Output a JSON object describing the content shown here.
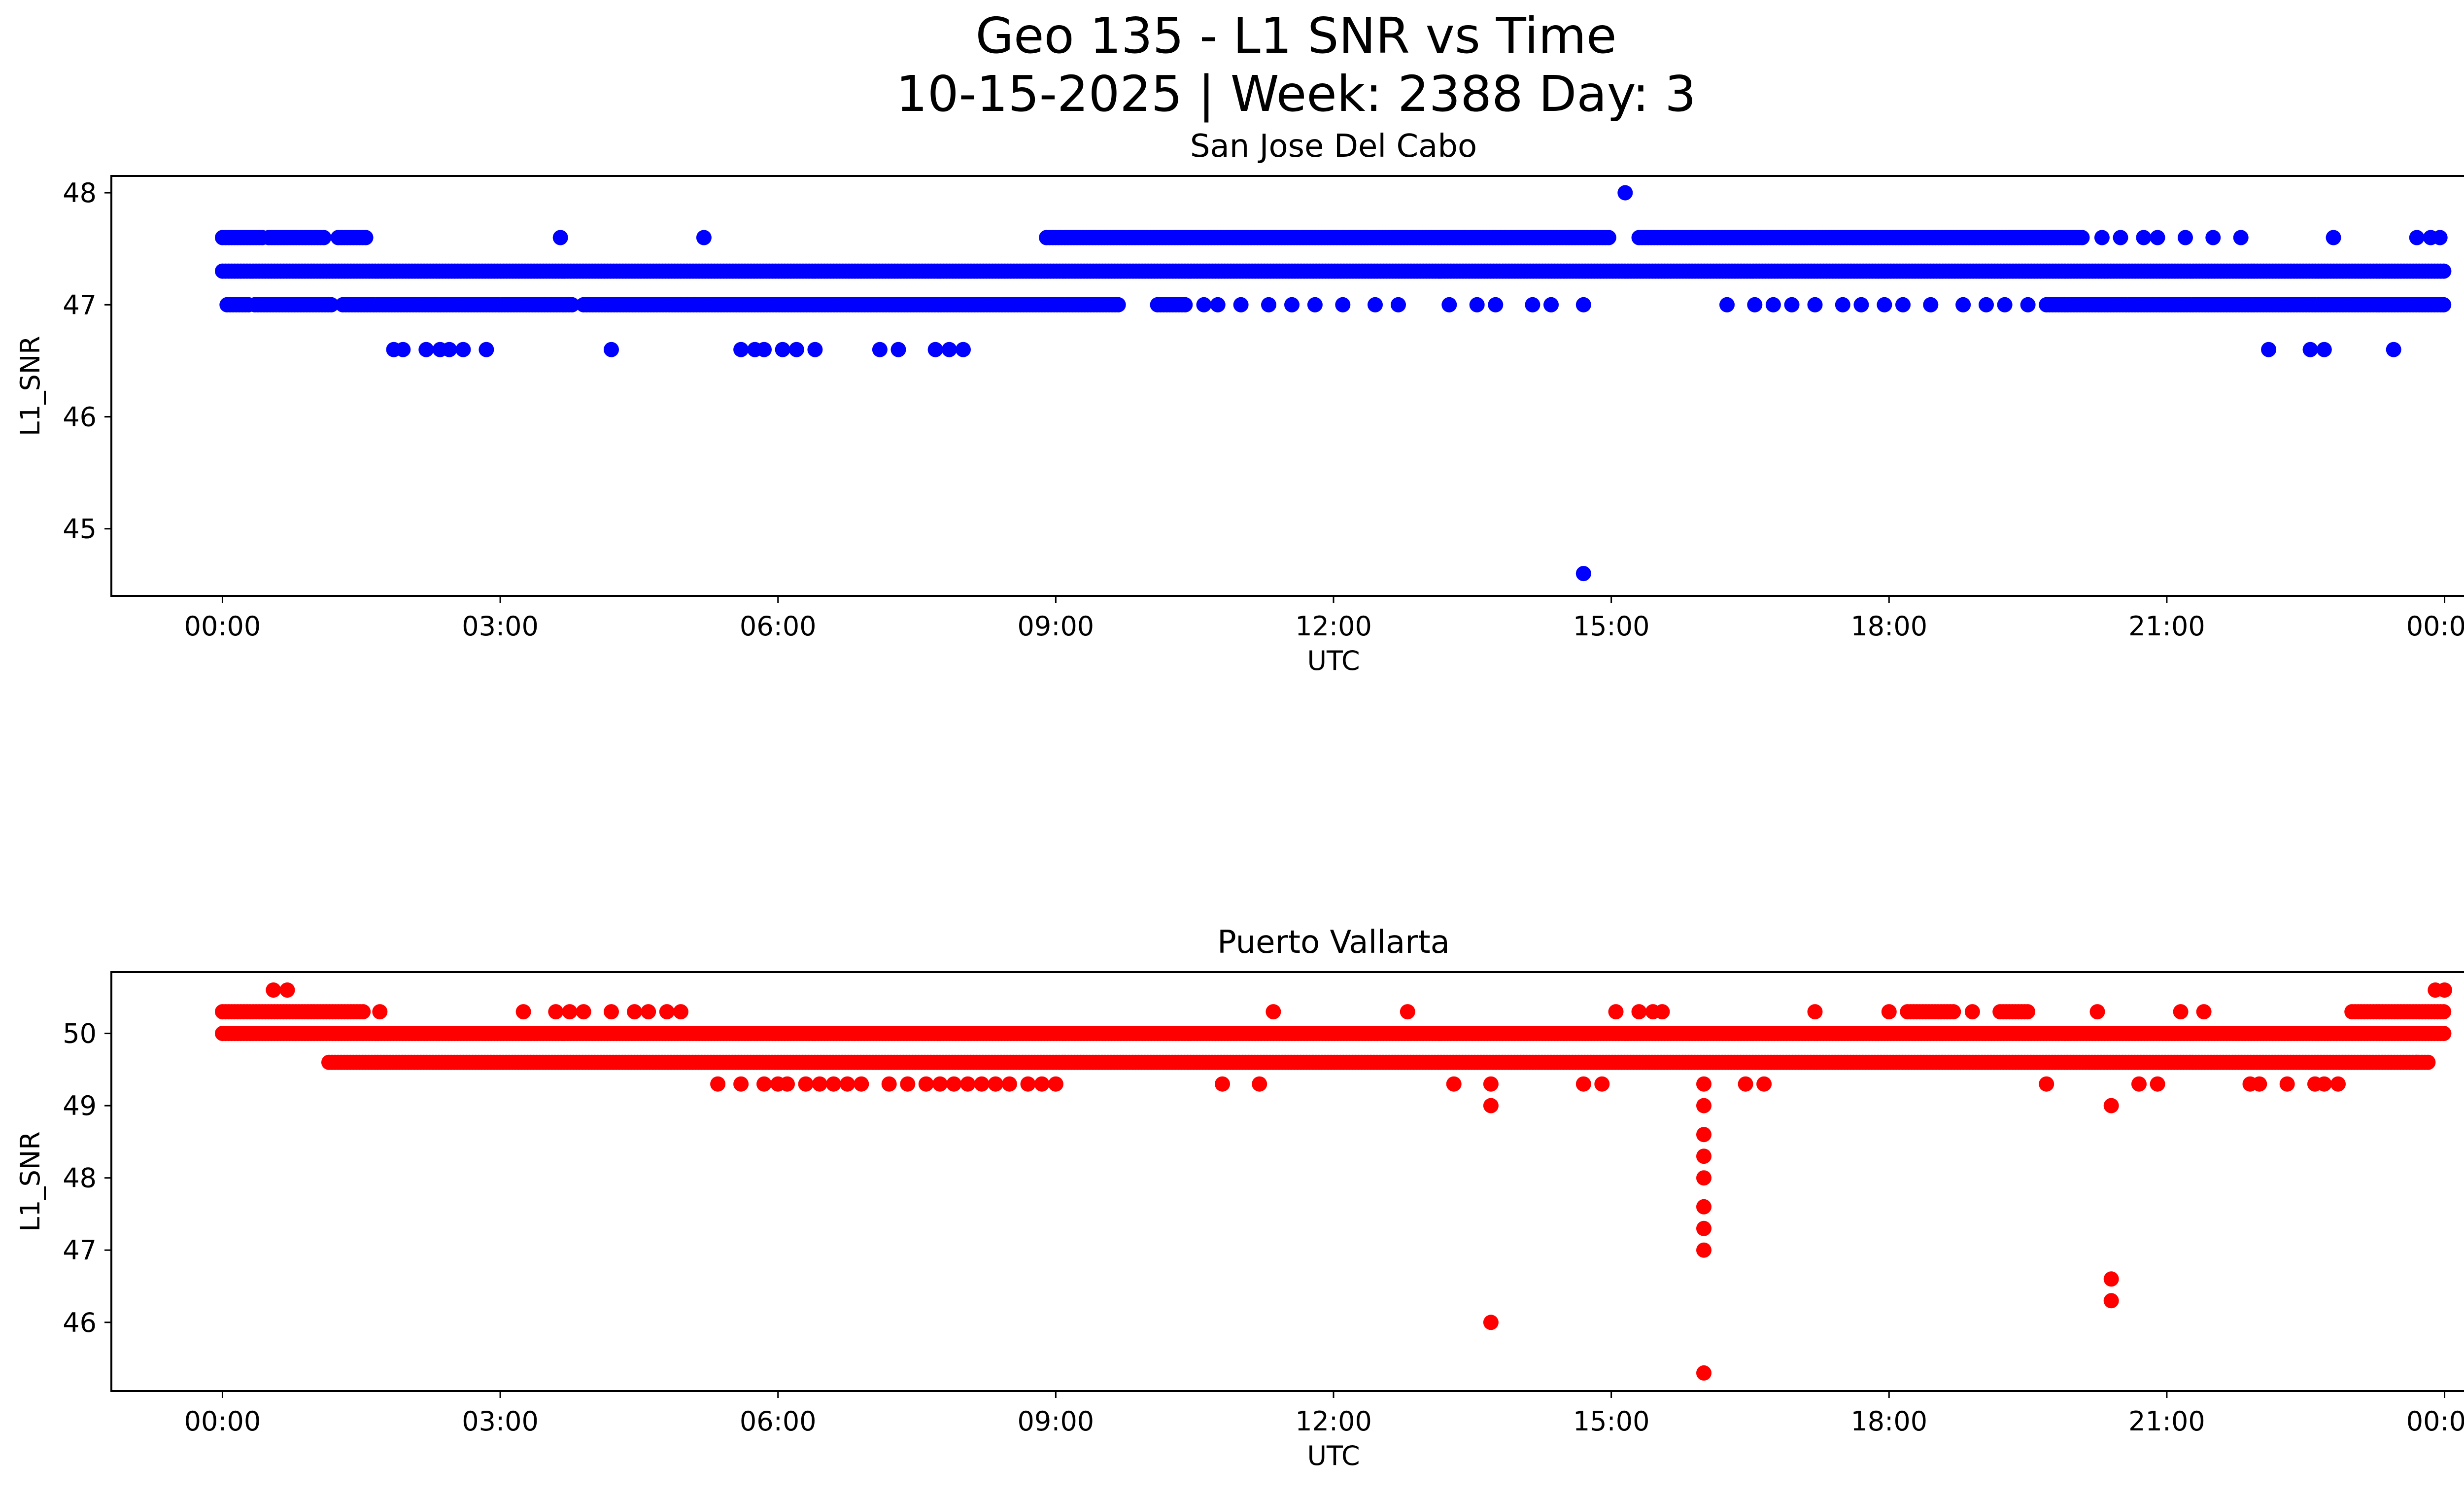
{
  "figure": {
    "title_line1": "Geo 135 - L1 SNR vs Time",
    "title_line2": "10-15-2025 | Week: 2388 Day: 3"
  },
  "colors": {
    "series_top": "#0000ff",
    "series_bottom": "#ff0000",
    "axis": "#000000",
    "background": "#ffffff"
  },
  "chart_data": [
    {
      "type": "scatter",
      "title": "San Jose Del Cabo",
      "xlabel": "UTC",
      "ylabel": "L1_SNR",
      "x_unit": "hours since 00:00 UTC",
      "xlim": [
        -1.2,
        25.2
      ],
      "ylim": [
        44.4,
        48.15
      ],
      "x_ticks": [
        0,
        3,
        6,
        9,
        12,
        15,
        18,
        21,
        24
      ],
      "x_tick_labels": [
        "00:00",
        "03:00",
        "06:00",
        "09:00",
        "12:00",
        "15:00",
        "18:00",
        "21:00",
        "00:00"
      ],
      "y_ticks": [
        45,
        46,
        47,
        48
      ],
      "y_tick_labels": [
        "45",
        "46",
        "47",
        "48"
      ],
      "color": "#0000ff",
      "bands": [
        {
          "y": 47.3,
          "ranges": [
            [
              0,
              24
            ]
          ]
        },
        {
          "y": 47.0,
          "ranges": [
            [
              0.05,
              0.3
            ],
            [
              0.35,
              1.2
            ],
            [
              1.3,
              3.8
            ],
            [
              3.9,
              9.7
            ],
            [
              10.1,
              10.4
            ],
            [
              19.7,
              24
            ]
          ]
        },
        {
          "y": 47.6,
          "ranges": [
            [
              0,
              0.45
            ],
            [
              0.5,
              1.1
            ],
            [
              1.25,
              1.55
            ],
            [
              8.9,
              15.0
            ],
            [
              15.3,
              20.1
            ]
          ]
        }
      ],
      "scattered": [
        {
          "x": 1.85,
          "y": 46.6
        },
        {
          "x": 1.95,
          "y": 46.6
        },
        {
          "x": 2.2,
          "y": 46.6
        },
        {
          "x": 2.35,
          "y": 46.6
        },
        {
          "x": 2.45,
          "y": 46.6
        },
        {
          "x": 2.6,
          "y": 46.6
        },
        {
          "x": 2.85,
          "y": 46.6
        },
        {
          "x": 3.65,
          "y": 47.6
        },
        {
          "x": 4.2,
          "y": 46.6
        },
        {
          "x": 5.2,
          "y": 47.6
        },
        {
          "x": 5.6,
          "y": 46.6
        },
        {
          "x": 5.75,
          "y": 46.6
        },
        {
          "x": 5.85,
          "y": 46.6
        },
        {
          "x": 6.05,
          "y": 46.6
        },
        {
          "x": 6.2,
          "y": 46.6
        },
        {
          "x": 6.4,
          "y": 46.6
        },
        {
          "x": 7.1,
          "y": 46.6
        },
        {
          "x": 7.3,
          "y": 46.6
        },
        {
          "x": 7.7,
          "y": 46.6
        },
        {
          "x": 7.85,
          "y": 46.6
        },
        {
          "x": 8.0,
          "y": 46.6
        },
        {
          "x": 10.6,
          "y": 47.0
        },
        {
          "x": 10.75,
          "y": 47.0
        },
        {
          "x": 11.0,
          "y": 47.0
        },
        {
          "x": 11.3,
          "y": 47.0
        },
        {
          "x": 11.55,
          "y": 47.0
        },
        {
          "x": 11.8,
          "y": 47.0
        },
        {
          "x": 12.1,
          "y": 47.0
        },
        {
          "x": 12.45,
          "y": 47.0
        },
        {
          "x": 12.7,
          "y": 47.0
        },
        {
          "x": 13.25,
          "y": 47.0
        },
        {
          "x": 13.55,
          "y": 47.0
        },
        {
          "x": 13.75,
          "y": 47.0
        },
        {
          "x": 14.15,
          "y": 47.0
        },
        {
          "x": 14.35,
          "y": 47.0
        },
        {
          "x": 14.7,
          "y": 47.0
        },
        {
          "x": 14.7,
          "y": 44.6
        },
        {
          "x": 15.15,
          "y": 48.0
        },
        {
          "x": 16.25,
          "y": 47.0
        },
        {
          "x": 16.55,
          "y": 47.0
        },
        {
          "x": 16.75,
          "y": 47.0
        },
        {
          "x": 16.95,
          "y": 47.0
        },
        {
          "x": 17.2,
          "y": 47.0
        },
        {
          "x": 17.5,
          "y": 47.0
        },
        {
          "x": 17.7,
          "y": 47.0
        },
        {
          "x": 17.95,
          "y": 47.0
        },
        {
          "x": 18.15,
          "y": 47.0
        },
        {
          "x": 18.45,
          "y": 47.0
        },
        {
          "x": 18.8,
          "y": 47.0
        },
        {
          "x": 19.05,
          "y": 47.0
        },
        {
          "x": 19.25,
          "y": 47.0
        },
        {
          "x": 19.5,
          "y": 47.0
        },
        {
          "x": 20.3,
          "y": 47.6
        },
        {
          "x": 20.5,
          "y": 47.6
        },
        {
          "x": 20.75,
          "y": 47.6
        },
        {
          "x": 20.9,
          "y": 47.6
        },
        {
          "x": 21.2,
          "y": 47.6
        },
        {
          "x": 21.5,
          "y": 47.6
        },
        {
          "x": 21.8,
          "y": 47.6
        },
        {
          "x": 22.1,
          "y": 46.6
        },
        {
          "x": 22.55,
          "y": 46.6
        },
        {
          "x": 22.7,
          "y": 46.6
        },
        {
          "x": 22.8,
          "y": 47.6
        },
        {
          "x": 23.45,
          "y": 46.6
        },
        {
          "x": 23.7,
          "y": 47.6
        },
        {
          "x": 23.85,
          "y": 47.6
        },
        {
          "x": 23.95,
          "y": 47.6
        }
      ]
    },
    {
      "type": "scatter",
      "title": "Puerto Vallarta",
      "xlabel": "UTC",
      "ylabel": "L1_SNR",
      "x_unit": "hours since 00:00 UTC",
      "xlim": [
        -1.2,
        25.2
      ],
      "ylim": [
        45.05,
        50.85
      ],
      "x_ticks": [
        0,
        3,
        6,
        9,
        12,
        15,
        18,
        21,
        24
      ],
      "x_tick_labels": [
        "00:00",
        "03:00",
        "06:00",
        "09:00",
        "12:00",
        "15:00",
        "18:00",
        "21:00",
        "00:00"
      ],
      "y_ticks": [
        46,
        47,
        48,
        49,
        50
      ],
      "y_tick_labels": [
        "46",
        "47",
        "48",
        "49",
        "50"
      ],
      "color": "#ff0000",
      "bands": [
        {
          "y": 50.0,
          "ranges": [
            [
              0,
              24
            ]
          ]
        },
        {
          "y": 49.6,
          "ranges": [
            [
              1.15,
              23.85
            ]
          ]
        },
        {
          "y": 50.3,
          "ranges": [
            [
              0,
              1.55
            ],
            [
              18.2,
              18.7
            ],
            [
              19.2,
              19.5
            ],
            [
              23.0,
              24.0
            ]
          ]
        }
      ],
      "scattered": [
        {
          "x": 0.55,
          "y": 50.6
        },
        {
          "x": 0.7,
          "y": 50.6
        },
        {
          "x": 1.7,
          "y": 50.3
        },
        {
          "x": 3.25,
          "y": 50.3
        },
        {
          "x": 3.6,
          "y": 50.3
        },
        {
          "x": 3.75,
          "y": 50.3
        },
        {
          "x": 3.9,
          "y": 50.3
        },
        {
          "x": 4.2,
          "y": 50.3
        },
        {
          "x": 4.45,
          "y": 50.3
        },
        {
          "x": 4.6,
          "y": 50.3
        },
        {
          "x": 4.8,
          "y": 50.3
        },
        {
          "x": 4.95,
          "y": 50.3
        },
        {
          "x": 5.35,
          "y": 49.3
        },
        {
          "x": 5.6,
          "y": 49.3
        },
        {
          "x": 5.85,
          "y": 49.3
        },
        {
          "x": 6.0,
          "y": 49.3
        },
        {
          "x": 6.1,
          "y": 49.3
        },
        {
          "x": 6.3,
          "y": 49.3
        },
        {
          "x": 6.45,
          "y": 49.3
        },
        {
          "x": 6.6,
          "y": 49.3
        },
        {
          "x": 6.75,
          "y": 49.3
        },
        {
          "x": 6.9,
          "y": 49.3
        },
        {
          "x": 7.2,
          "y": 49.3
        },
        {
          "x": 7.4,
          "y": 49.3
        },
        {
          "x": 7.6,
          "y": 49.3
        },
        {
          "x": 7.75,
          "y": 49.3
        },
        {
          "x": 7.9,
          "y": 49.3
        },
        {
          "x": 8.05,
          "y": 49.3
        },
        {
          "x": 8.2,
          "y": 49.3
        },
        {
          "x": 8.35,
          "y": 49.3
        },
        {
          "x": 8.5,
          "y": 49.3
        },
        {
          "x": 8.7,
          "y": 49.3
        },
        {
          "x": 8.85,
          "y": 49.3
        },
        {
          "x": 9.0,
          "y": 49.3
        },
        {
          "x": 10.8,
          "y": 49.3
        },
        {
          "x": 11.2,
          "y": 49.3
        },
        {
          "x": 11.35,
          "y": 50.3
        },
        {
          "x": 12.8,
          "y": 50.3
        },
        {
          "x": 13.3,
          "y": 49.3
        },
        {
          "x": 13.7,
          "y": 49.3
        },
        {
          "x": 13.7,
          "y": 49.0
        },
        {
          "x": 13.7,
          "y": 46.0
        },
        {
          "x": 14.7,
          "y": 49.3
        },
        {
          "x": 14.9,
          "y": 49.3
        },
        {
          "x": 15.05,
          "y": 50.3
        },
        {
          "x": 15.3,
          "y": 50.3
        },
        {
          "x": 15.45,
          "y": 50.3
        },
        {
          "x": 15.55,
          "y": 50.3
        },
        {
          "x": 16.0,
          "y": 49.3
        },
        {
          "x": 16.0,
          "y": 49.0
        },
        {
          "x": 16.0,
          "y": 48.6
        },
        {
          "x": 16.0,
          "y": 48.3
        },
        {
          "x": 16.0,
          "y": 48.0
        },
        {
          "x": 16.0,
          "y": 47.6
        },
        {
          "x": 16.0,
          "y": 47.3
        },
        {
          "x": 16.0,
          "y": 47.0
        },
        {
          "x": 16.0,
          "y": 45.3
        },
        {
          "x": 16.45,
          "y": 49.3
        },
        {
          "x": 16.65,
          "y": 49.3
        },
        {
          "x": 17.2,
          "y": 50.3
        },
        {
          "x": 18.0,
          "y": 50.3
        },
        {
          "x": 18.9,
          "y": 50.3
        },
        {
          "x": 19.7,
          "y": 49.3
        },
        {
          "x": 20.25,
          "y": 50.3
        },
        {
          "x": 20.4,
          "y": 49.0
        },
        {
          "x": 20.4,
          "y": 46.6
        },
        {
          "x": 20.4,
          "y": 46.3
        },
        {
          "x": 20.7,
          "y": 49.3
        },
        {
          "x": 20.9,
          "y": 49.3
        },
        {
          "x": 21.15,
          "y": 50.3
        },
        {
          "x": 21.4,
          "y": 50.3
        },
        {
          "x": 21.9,
          "y": 49.3
        },
        {
          "x": 22.0,
          "y": 49.3
        },
        {
          "x": 22.3,
          "y": 49.3
        },
        {
          "x": 22.6,
          "y": 49.3
        },
        {
          "x": 22.7,
          "y": 49.3
        },
        {
          "x": 22.85,
          "y": 49.3
        },
        {
          "x": 23.7,
          "y": 49.6
        },
        {
          "x": 23.9,
          "y": 50.6
        },
        {
          "x": 24.0,
          "y": 50.6
        }
      ]
    }
  ]
}
